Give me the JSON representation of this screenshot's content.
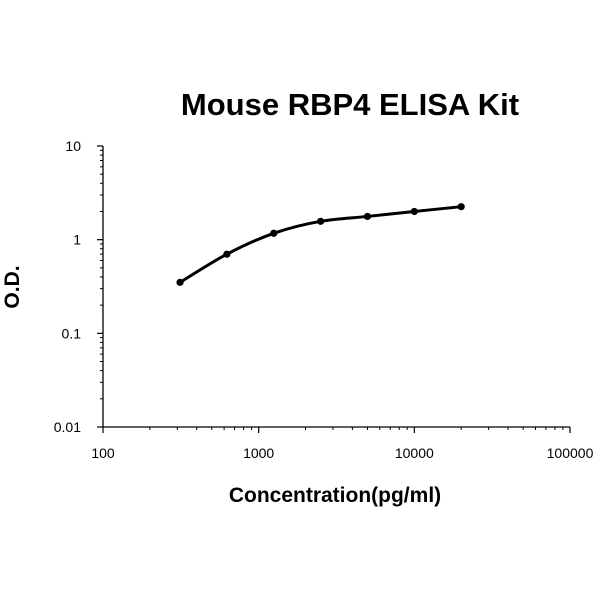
{
  "chart_data": {
    "type": "line",
    "title": "Mouse RBP4 ELISA Kit",
    "xlabel": "Concentration(pg/ml)",
    "ylabel": "O.D.",
    "x_scale": "log",
    "y_scale": "log",
    "xlim": [
      100,
      100000
    ],
    "ylim": [
      0.01,
      10
    ],
    "x_ticks": [
      "100",
      "1000",
      "10000",
      "100000"
    ],
    "y_ticks": [
      "0.01",
      "0.1",
      "1",
      "10"
    ],
    "grid": false,
    "legend": "none",
    "series": [
      {
        "x": [
          312.5,
          625,
          1250,
          2500,
          5000,
          10000,
          20000
        ],
        "values": [
          0.35,
          0.7,
          1.17,
          1.57,
          1.77,
          2.0,
          2.25
        ],
        "color": "#000000",
        "marker": "circle"
      }
    ]
  }
}
